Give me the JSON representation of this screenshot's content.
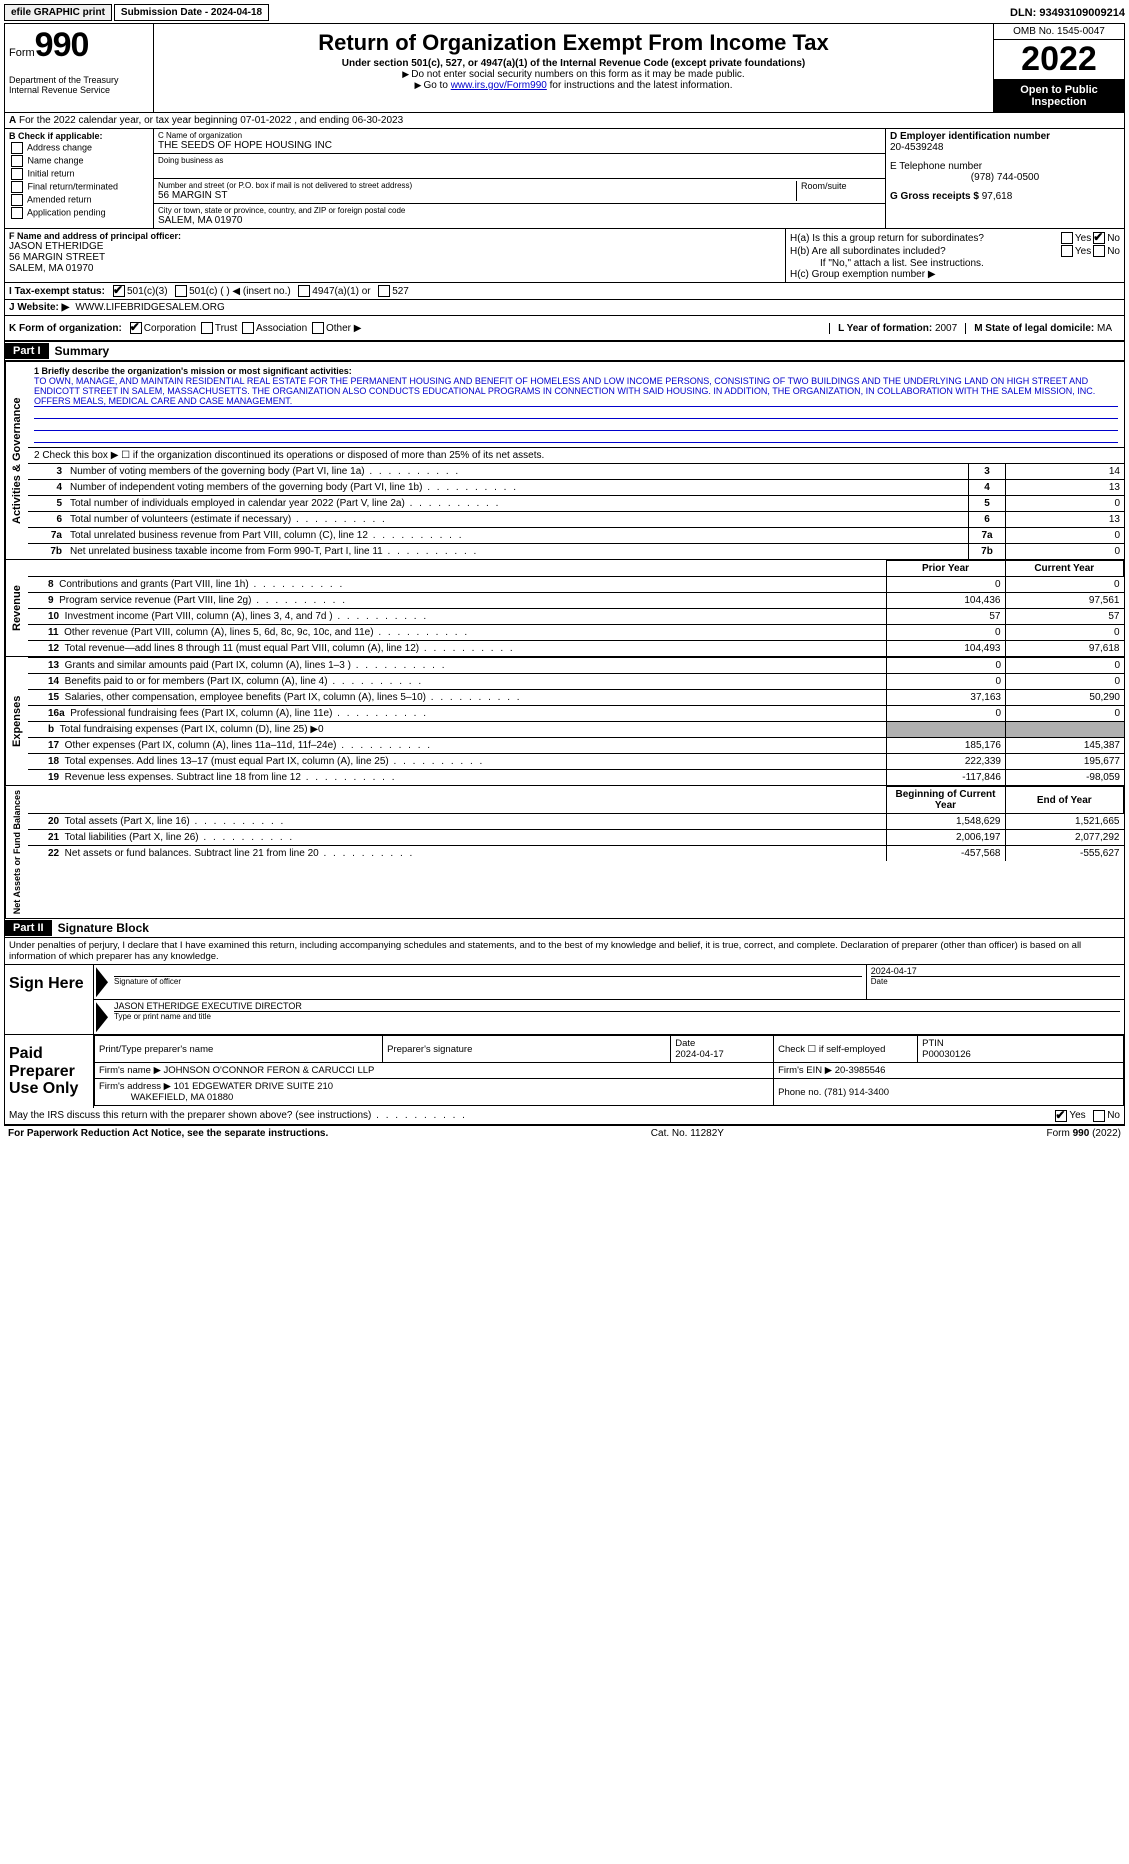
{
  "top": {
    "efile": "efile GRAPHIC print",
    "submission": "Submission Date - 2024-04-18",
    "dln": "DLN: 93493109009214"
  },
  "header": {
    "form_prefix": "Form",
    "form_number": "990",
    "dept": "Department of the Treasury Internal Revenue Service",
    "title": "Return of Organization Exempt From Income Tax",
    "sub": "Under section 501(c), 527, or 4947(a)(1) of the Internal Revenue Code (except private foundations)",
    "note1": "Do not enter social security numbers on this form as it may be made public.",
    "note2_pre": "Go to ",
    "note2_link": "www.irs.gov/Form990",
    "note2_post": " for instructions and the latest information.",
    "omb": "OMB No. 1545-0047",
    "year": "2022",
    "open": "Open to Public Inspection"
  },
  "rowA": "For the 2022 calendar year, or tax year beginning 07-01-2022   , and ending 06-30-2023",
  "B": {
    "label": "B Check if applicable:",
    "items": [
      "Address change",
      "Name change",
      "Initial return",
      "Final return/terminated",
      "Amended return",
      "Application pending"
    ]
  },
  "C": {
    "name_label": "C Name of organization",
    "name": "THE SEEDS OF HOPE HOUSING INC",
    "dba_label": "Doing business as",
    "street_label": "Number and street (or P.O. box if mail is not delivered to street address)",
    "street": "56 MARGIN ST",
    "suite_label": "Room/suite",
    "city_label": "City or town, state or province, country, and ZIP or foreign postal code",
    "city": "SALEM, MA  01970"
  },
  "D": {
    "ein_label": "D Employer identification number",
    "ein": "20-4539248",
    "tel_label": "E Telephone number",
    "tel": "(978) 744-0500",
    "gross_label": "G Gross receipts $",
    "gross": "97,618"
  },
  "F": {
    "label": "F  Name and address of principal officer:",
    "name": "JASON ETHERIDGE",
    "street": "56 MARGIN STREET",
    "city": "SALEM, MA  01970"
  },
  "H": {
    "a": "H(a)  Is this a group return for subordinates?",
    "b": "H(b)  Are all subordinates included?",
    "b_note": "If \"No,\" attach a list. See instructions.",
    "c": "H(c)  Group exemption number ▶",
    "yes": "Yes",
    "no": "No"
  },
  "I": {
    "label": "I Tax-exempt status:",
    "opts": [
      "501(c)(3)",
      "501(c) (  ) ◀ (insert no.)",
      "4947(a)(1) or",
      "527"
    ]
  },
  "J": {
    "label": "J Website: ▶",
    "val": "WWW.LIFEBRIDGESALEM.ORG"
  },
  "K": {
    "label": "K Form of organization:",
    "opts": [
      "Corporation",
      "Trust",
      "Association",
      "Other ▶"
    ]
  },
  "L": {
    "label": "L Year of formation:",
    "val": "2007"
  },
  "M": {
    "label": "M State of legal domicile:",
    "val": "MA"
  },
  "partI": {
    "header": "Part I",
    "title": "Summary"
  },
  "mission": {
    "label": "1  Briefly describe the organization's mission or most significant activities:",
    "text": "TO OWN, MANAGE, AND MAINTAIN RESIDENTIAL REAL ESTATE FOR THE PERMANENT HOUSING AND BENEFIT OF HOMELESS AND LOW INCOME PERSONS, CONSISTING OF TWO BUILDINGS AND THE UNDERLYING LAND ON HIGH STREET AND ENDICOTT STREET IN SALEM, MASSACHUSETTS. THE ORGANIZATION ALSO CONDUCTS EDUCATIONAL PROGRAMS IN CONNECTION WITH SAID HOUSING. IN ADDITION, THE ORGANIZATION, IN COLLABORATION WITH THE SALEM MISSION, INC. OFFERS MEALS, MEDICAL CARE AND CASE MANAGEMENT."
  },
  "gov": {
    "vlabel": "Activities & Governance",
    "line2": "2  Check this box ▶ ☐  if the organization discontinued its operations or disposed of more than 25% of its net assets.",
    "rows": [
      {
        "n": "3",
        "desc": "Number of voting members of the governing body (Part VI, line 1a)",
        "box": "3",
        "val": "14"
      },
      {
        "n": "4",
        "desc": "Number of independent voting members of the governing body (Part VI, line 1b)",
        "box": "4",
        "val": "13"
      },
      {
        "n": "5",
        "desc": "Total number of individuals employed in calendar year 2022 (Part V, line 2a)",
        "box": "5",
        "val": "0"
      },
      {
        "n": "6",
        "desc": "Total number of volunteers (estimate if necessary)",
        "box": "6",
        "val": "13"
      },
      {
        "n": "7a",
        "desc": "Total unrelated business revenue from Part VIII, column (C), line 12",
        "box": "7a",
        "val": "0"
      },
      {
        "n": "7b",
        "desc": "Net unrelated business taxable income from Form 990-T, Part I, line 11",
        "box": "7b",
        "val": "0"
      }
    ]
  },
  "rev": {
    "vlabel": "Revenue",
    "header_prior": "Prior Year",
    "header_cur": "Current Year",
    "rows": [
      {
        "n": "8",
        "desc": "Contributions and grants (Part VIII, line 1h)",
        "p": "0",
        "c": "0"
      },
      {
        "n": "9",
        "desc": "Program service revenue (Part VIII, line 2g)",
        "p": "104,436",
        "c": "97,561"
      },
      {
        "n": "10",
        "desc": "Investment income (Part VIII, column (A), lines 3, 4, and 7d )",
        "p": "57",
        "c": "57"
      },
      {
        "n": "11",
        "desc": "Other revenue (Part VIII, column (A), lines 5, 6d, 8c, 9c, 10c, and 11e)",
        "p": "0",
        "c": "0"
      },
      {
        "n": "12",
        "desc": "Total revenue—add lines 8 through 11 (must equal Part VIII, column (A), line 12)",
        "p": "104,493",
        "c": "97,618"
      }
    ]
  },
  "exp": {
    "vlabel": "Expenses",
    "rows": [
      {
        "n": "13",
        "desc": "Grants and similar amounts paid (Part IX, column (A), lines 1–3 )",
        "p": "0",
        "c": "0"
      },
      {
        "n": "14",
        "desc": "Benefits paid to or for members (Part IX, column (A), line 4)",
        "p": "0",
        "c": "0"
      },
      {
        "n": "15",
        "desc": "Salaries, other compensation, employee benefits (Part IX, column (A), lines 5–10)",
        "p": "37,163",
        "c": "50,290"
      },
      {
        "n": "16a",
        "desc": "Professional fundraising fees (Part IX, column (A), line 11e)",
        "p": "0",
        "c": "0"
      },
      {
        "n": "b",
        "desc": "Total fundraising expenses (Part IX, column (D), line 25) ▶0",
        "shaded": true
      },
      {
        "n": "17",
        "desc": "Other expenses (Part IX, column (A), lines 11a–11d, 11f–24e)",
        "p": "185,176",
        "c": "145,387"
      },
      {
        "n": "18",
        "desc": "Total expenses. Add lines 13–17 (must equal Part IX, column (A), line 25)",
        "p": "222,339",
        "c": "195,677"
      },
      {
        "n": "19",
        "desc": "Revenue less expenses. Subtract line 18 from line 12",
        "p": "-117,846",
        "c": "-98,059"
      }
    ]
  },
  "net": {
    "vlabel": "Net Assets or Fund Balances",
    "header_beg": "Beginning of Current Year",
    "header_end": "End of Year",
    "rows": [
      {
        "n": "20",
        "desc": "Total assets (Part X, line 16)",
        "p": "1,548,629",
        "c": "1,521,665"
      },
      {
        "n": "21",
        "desc": "Total liabilities (Part X, line 26)",
        "p": "2,006,197",
        "c": "2,077,292"
      },
      {
        "n": "22",
        "desc": "Net assets or fund balances. Subtract line 21 from line 20",
        "p": "-457,568",
        "c": "-555,627"
      }
    ]
  },
  "partII": {
    "header": "Part II",
    "title": "Signature Block"
  },
  "sig": {
    "penalty": "Under penalties of perjury, I declare that I have examined this return, including accompanying schedules and statements, and to the best of my knowledge and belief, it is true, correct, and complete. Declaration of preparer (other than officer) is based on all information of which preparer has any knowledge.",
    "sign_here": "Sign Here",
    "sig_officer": "Signature of officer",
    "date": "Date",
    "date_val": "2024-04-17",
    "name": "JASON ETHERIDGE  EXECUTIVE DIRECTOR",
    "name_label": "Type or print name and title"
  },
  "prep": {
    "label": "Paid Preparer Use Only",
    "h1": "Print/Type preparer's name",
    "h2": "Preparer's signature",
    "h3": "Date",
    "h3v": "2024-04-17",
    "h4": "Check ☐ if self-employed",
    "h5": "PTIN",
    "h5v": "P00030126",
    "firm_label": "Firm's name    ▶",
    "firm": "JOHNSON O'CONNOR FERON & CARUCCI LLP",
    "ein_label": "Firm's EIN ▶",
    "ein": "20-3985546",
    "addr_label": "Firm's address ▶",
    "addr1": "101 EDGEWATER DRIVE SUITE 210",
    "addr2": "WAKEFIELD, MA  01880",
    "phone_label": "Phone no.",
    "phone": "(781) 914-3400"
  },
  "discuss": {
    "q": "May the IRS discuss this return with the preparer shown above? (see instructions)",
    "yes": "Yes",
    "no": "No"
  },
  "footer": {
    "left": "For Paperwork Reduction Act Notice, see the separate instructions.",
    "mid": "Cat. No. 11282Y",
    "right": "Form 990 (2022)"
  },
  "colors": {
    "link": "#0000cc",
    "shaded": "#b0b0b0"
  }
}
